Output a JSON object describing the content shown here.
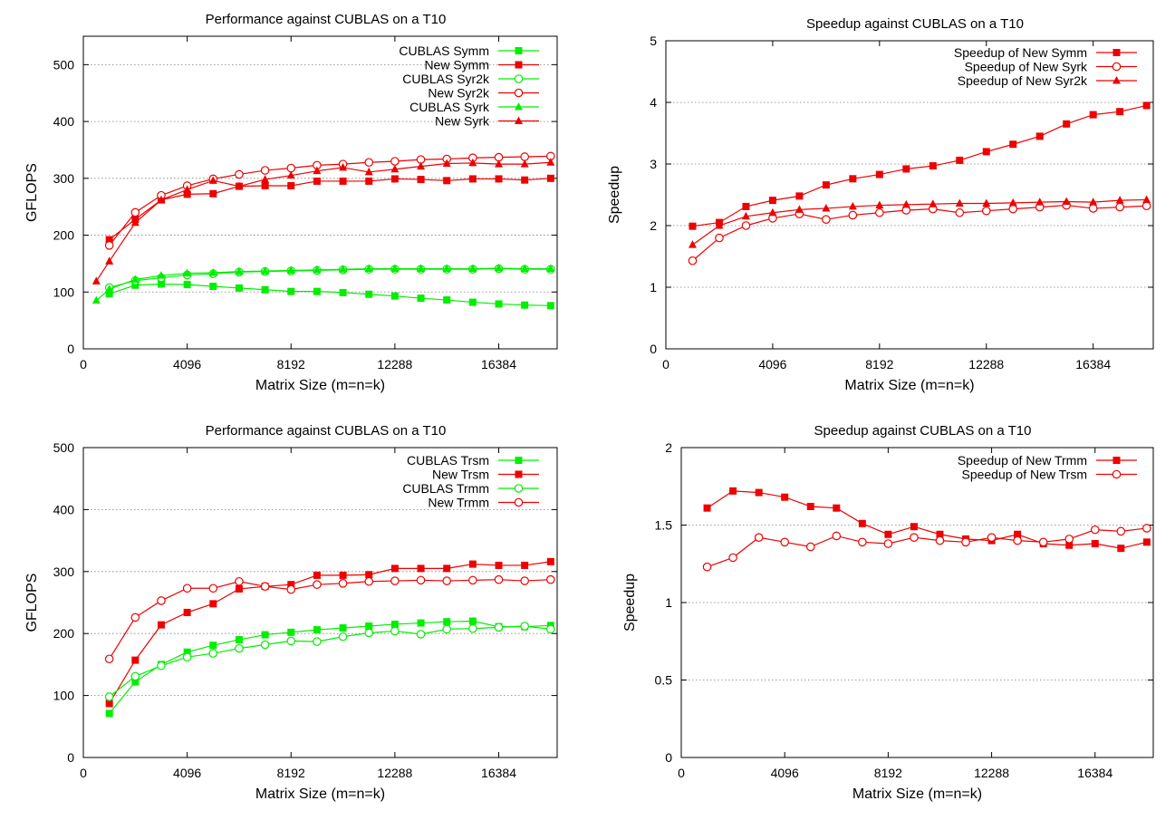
{
  "colors": {
    "cublas": "#00ee00",
    "new": "#ee0000",
    "grid": "#808080",
    "axis": "#000000"
  },
  "chart_data": [
    {
      "type": "line",
      "title": "Performance against CUBLAS on a T10",
      "xlabel": "Matrix Size (m=n=k)",
      "ylabel": "GFLOPS",
      "xlim": [
        0,
        18688
      ],
      "ylim": [
        0,
        550
      ],
      "xticks": [
        0,
        4096,
        8192,
        12288,
        16384
      ],
      "yticks": [
        0,
        100,
        200,
        300,
        400,
        500
      ],
      "grid": "horizontal",
      "legend": "top-right",
      "series": [
        {
          "name": "CUBLAS Symm",
          "color": "cublas",
          "marker": "filled-square",
          "x": [
            1024,
            2048,
            3072,
            4096,
            5120,
            6144,
            7168,
            8192,
            9216,
            10240,
            11264,
            12288,
            13312,
            14336,
            15360,
            16384,
            17408,
            18432
          ],
          "y": [
            97,
            112,
            114,
            113,
            110,
            107,
            104,
            101,
            101,
            99,
            96,
            93,
            89,
            86,
            82,
            79,
            77,
            76
          ]
        },
        {
          "name": "New Symm",
          "color": "new",
          "marker": "filled-square",
          "x": [
            1024,
            2048,
            3072,
            4096,
            5120,
            6144,
            7168,
            8192,
            9216,
            10240,
            11264,
            12288,
            13312,
            14336,
            15360,
            16384,
            17408,
            18432
          ],
          "y": [
            192,
            228,
            262,
            272,
            273,
            286,
            287,
            287,
            295,
            295,
            295,
            299,
            298,
            296,
            299,
            299,
            297,
            300
          ]
        },
        {
          "name": "CUBLAS Syr2k",
          "color": "cublas",
          "marker": "open-circle",
          "x": [
            1024,
            2048,
            3072,
            4096,
            5120,
            6144,
            7168,
            8192,
            9216,
            10240,
            11264,
            12288,
            13312,
            14336,
            15360,
            16384,
            17408,
            18432
          ],
          "y": [
            108,
            120,
            125,
            130,
            132,
            135,
            136,
            137,
            138,
            139,
            140,
            140,
            140,
            140,
            140,
            141,
            140,
            140
          ]
        },
        {
          "name": "New Syr2k",
          "color": "new",
          "marker": "open-circle",
          "x": [
            1024,
            2048,
            3072,
            4096,
            5120,
            6144,
            7168,
            8192,
            9216,
            10240,
            11264,
            12288,
            13312,
            14336,
            15360,
            16384,
            17408,
            18432
          ],
          "y": [
            182,
            240,
            270,
            287,
            299,
            307,
            314,
            318,
            323,
            325,
            328,
            330,
            333,
            334,
            336,
            337,
            338,
            339
          ]
        },
        {
          "name": "CUBLAS Syrk",
          "color": "cublas",
          "marker": "filled-triangle",
          "x": [
            512,
            1024,
            2048,
            3072,
            4096,
            5120,
            6144,
            7168,
            8192,
            9216,
            10240,
            11264,
            12288,
            13312,
            14336,
            15360,
            16384,
            17408,
            18432
          ],
          "y": [
            85,
            105,
            122,
            129,
            133,
            134,
            136,
            137,
            138,
            139,
            140,
            141,
            141,
            141,
            141,
            141,
            142,
            141,
            141
          ]
        },
        {
          "name": "New Syrk",
          "color": "new",
          "marker": "filled-triangle",
          "x": [
            512,
            1024,
            2048,
            3072,
            4096,
            5120,
            6144,
            7168,
            8192,
            9216,
            10240,
            11264,
            12288,
            13312,
            14336,
            15360,
            16384,
            17408,
            18432
          ],
          "y": [
            119,
            154,
            222,
            262,
            280,
            296,
            286,
            298,
            305,
            313,
            319,
            311,
            316,
            321,
            326,
            327,
            325,
            325,
            328
          ]
        }
      ]
    },
    {
      "type": "line",
      "title": "Speedup against CUBLAS on a T10",
      "xlabel": "Matrix Size (m=n=k)",
      "ylabel": "Speedup",
      "xlim": [
        0,
        18688
      ],
      "ylim": [
        0,
        5
      ],
      "xticks": [
        0,
        4096,
        8192,
        12288,
        16384
      ],
      "yticks": [
        0,
        1,
        2,
        3,
        4,
        5
      ],
      "grid": "horizontal",
      "legend": "top-right",
      "series": [
        {
          "name": "Speedup of New Symm",
          "color": "new",
          "marker": "filled-square",
          "x": [
            1024,
            2048,
            3072,
            4096,
            5120,
            6144,
            7168,
            8192,
            9216,
            10240,
            11264,
            12288,
            13312,
            14336,
            15360,
            16384,
            17408,
            18432
          ],
          "y": [
            1.99,
            2.05,
            2.31,
            2.41,
            2.48,
            2.66,
            2.76,
            2.83,
            2.92,
            2.97,
            3.06,
            3.2,
            3.32,
            3.45,
            3.65,
            3.8,
            3.85,
            3.95
          ]
        },
        {
          "name": "Speedup of New Syrk",
          "color": "new",
          "marker": "open-circle",
          "x": [
            1024,
            2048,
            3072,
            4096,
            5120,
            6144,
            7168,
            8192,
            9216,
            10240,
            11264,
            12288,
            13312,
            14336,
            15360,
            16384,
            17408,
            18432
          ],
          "y": [
            1.43,
            1.8,
            2.0,
            2.12,
            2.19,
            2.1,
            2.17,
            2.21,
            2.25,
            2.27,
            2.21,
            2.24,
            2.27,
            2.3,
            2.33,
            2.28,
            2.3,
            2.32
          ]
        },
        {
          "name": "Speedup of New Syr2k",
          "color": "new",
          "marker": "filled-triangle",
          "x": [
            1024,
            2048,
            3072,
            4096,
            5120,
            6144,
            7168,
            8192,
            9216,
            10240,
            11264,
            12288,
            13312,
            14336,
            15360,
            16384,
            17408,
            18432
          ],
          "y": [
            1.69,
            2.0,
            2.15,
            2.21,
            2.26,
            2.28,
            2.31,
            2.33,
            2.34,
            2.35,
            2.36,
            2.36,
            2.37,
            2.38,
            2.39,
            2.38,
            2.41,
            2.42
          ]
        }
      ]
    },
    {
      "type": "line",
      "title": "Performance against CUBLAS on a T10",
      "xlabel": "Matrix Size (m=n=k)",
      "ylabel": "GFLOPS",
      "xlim": [
        0,
        18688
      ],
      "ylim": [
        0,
        500
      ],
      "xticks": [
        0,
        4096,
        8192,
        12288,
        16384
      ],
      "yticks": [
        0,
        100,
        200,
        300,
        400,
        500
      ],
      "grid": "horizontal",
      "legend": "top-right",
      "series": [
        {
          "name": "CUBLAS Trsm",
          "color": "cublas",
          "marker": "filled-square",
          "x": [
            1024,
            2048,
            3072,
            4096,
            5120,
            6144,
            7168,
            8192,
            9216,
            10240,
            11264,
            12288,
            13312,
            14336,
            15360,
            16384,
            17408,
            18432
          ],
          "y": [
            71,
            122,
            150,
            170,
            181,
            190,
            198,
            202,
            206,
            209,
            212,
            215,
            217,
            219,
            220,
            211,
            211,
            213
          ]
        },
        {
          "name": "New Trsm",
          "color": "new",
          "marker": "filled-square",
          "x": [
            1024,
            2048,
            3072,
            4096,
            5120,
            6144,
            7168,
            8192,
            9216,
            10240,
            11264,
            12288,
            13312,
            14336,
            15360,
            16384,
            17408,
            18432
          ],
          "y": [
            87,
            157,
            214,
            234,
            248,
            272,
            276,
            279,
            294,
            294,
            295,
            305,
            305,
            305,
            312,
            310,
            310,
            316
          ]
        },
        {
          "name": "CUBLAS Trmm",
          "color": "cublas",
          "marker": "open-circle",
          "x": [
            1024,
            2048,
            3072,
            4096,
            5120,
            6144,
            7168,
            8192,
            9216,
            10240,
            11264,
            12288,
            13312,
            14336,
            15360,
            16384,
            17408,
            18432
          ],
          "y": [
            98,
            131,
            148,
            162,
            168,
            176,
            182,
            188,
            187,
            195,
            201,
            204,
            199,
            207,
            208,
            210,
            212,
            207
          ]
        },
        {
          "name": "New Trmm",
          "color": "new",
          "marker": "open-circle",
          "x": [
            1024,
            2048,
            3072,
            4096,
            5120,
            6144,
            7168,
            8192,
            9216,
            10240,
            11264,
            12288,
            13312,
            14336,
            15360,
            16384,
            17408,
            18432
          ],
          "y": [
            159,
            226,
            253,
            273,
            273,
            284,
            276,
            271,
            279,
            281,
            284,
            285,
            286,
            285,
            286,
            287,
            285,
            287
          ]
        }
      ]
    },
    {
      "type": "line",
      "title": "Speedup against CUBLAS on a T10",
      "xlabel": "Matrix Size (m=n=k)",
      "ylabel": "Speedup",
      "xlim": [
        0,
        18688
      ],
      "ylim": [
        0,
        2
      ],
      "xticks": [
        0,
        4096,
        8192,
        12288,
        16384
      ],
      "yticks": [
        0,
        0.5,
        1,
        1.5,
        2
      ],
      "grid": "horizontal",
      "legend": "top-right",
      "series": [
        {
          "name": "Speedup of New Trmm",
          "color": "new",
          "marker": "filled-square",
          "x": [
            1024,
            2048,
            3072,
            4096,
            5120,
            6144,
            7168,
            8192,
            9216,
            10240,
            11264,
            12288,
            13312,
            14336,
            15360,
            16384,
            17408,
            18432
          ],
          "y": [
            1.61,
            1.72,
            1.71,
            1.68,
            1.62,
            1.61,
            1.51,
            1.44,
            1.49,
            1.44,
            1.41,
            1.4,
            1.44,
            1.38,
            1.37,
            1.38,
            1.35,
            1.39
          ]
        },
        {
          "name": "Speedup of New Trsm",
          "color": "new",
          "marker": "open-circle",
          "x": [
            1024,
            2048,
            3072,
            4096,
            5120,
            6144,
            7168,
            8192,
            9216,
            10240,
            11264,
            12288,
            13312,
            14336,
            15360,
            16384,
            17408,
            18432
          ],
          "y": [
            1.23,
            1.29,
            1.42,
            1.39,
            1.36,
            1.43,
            1.39,
            1.38,
            1.42,
            1.4,
            1.39,
            1.42,
            1.4,
            1.39,
            1.41,
            1.47,
            1.46,
            1.48
          ]
        }
      ]
    }
  ]
}
